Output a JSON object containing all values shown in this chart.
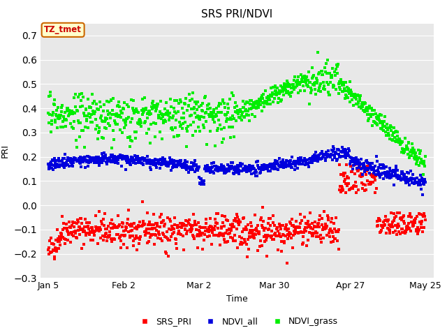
{
  "title": "SRS PRI/NDVI",
  "xlabel": "Time",
  "ylabel": "PRI",
  "ylim": [
    -0.3,
    0.75
  ],
  "yticks": [
    -0.3,
    -0.2,
    -0.1,
    0.0,
    0.1,
    0.2,
    0.3,
    0.4,
    0.5,
    0.6,
    0.7
  ],
  "xtick_labels": [
    "Jan 5",
    "Feb 2",
    "Mar 2",
    "Mar 30",
    "Apr 27",
    "May 25"
  ],
  "annotation_text": "TZ_tmet",
  "colors": {
    "SRS_PRI": "#ff0000",
    "NDVI_all": "#0000dd",
    "NDVI_grass": "#00ee00"
  },
  "background_color": "#e8e8e8",
  "grid_color": "#ffffff",
  "marker_size": 8,
  "title_fontsize": 11
}
